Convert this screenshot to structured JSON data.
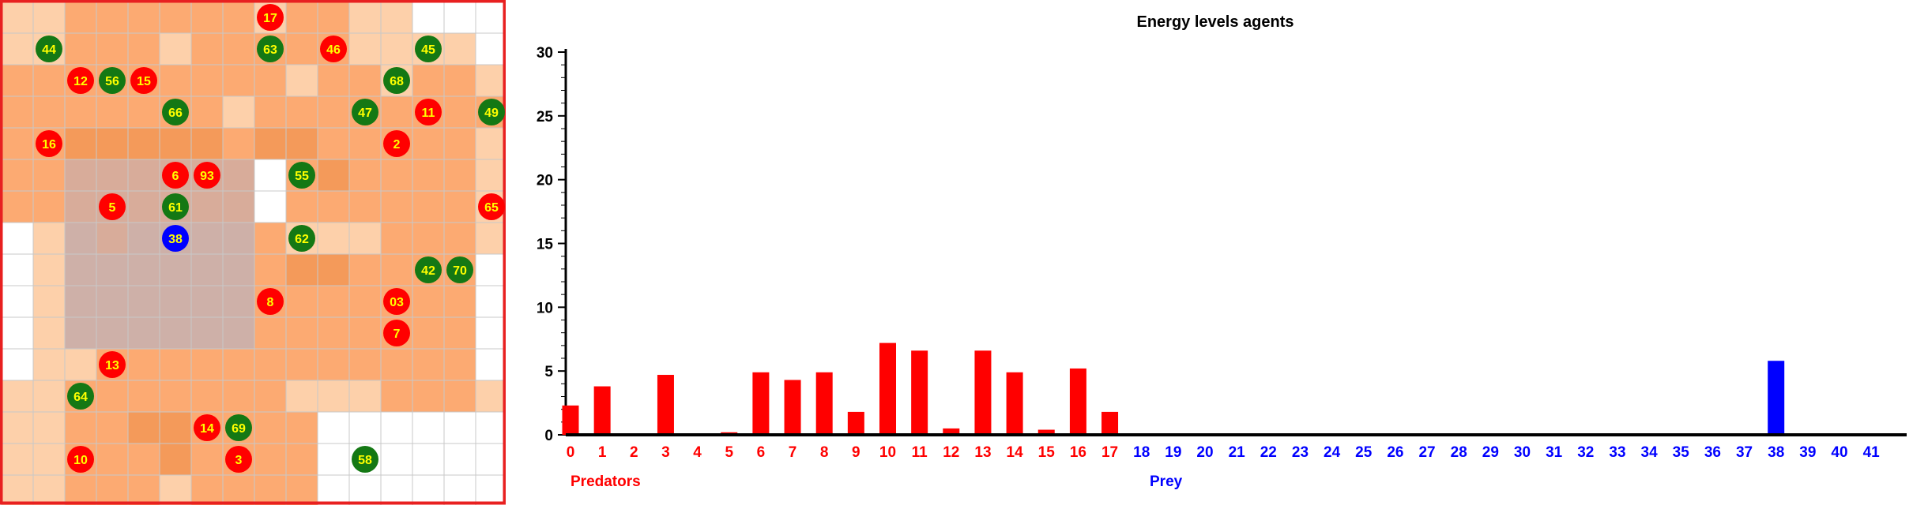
{
  "colors": {
    "predator": "#ff0000",
    "prey": "#147814",
    "highlight": "#0000ff",
    "border": "#e82020",
    "label_text": "#ffff00",
    "grid_line": "#c8c8c8",
    "palette": [
      "#ffffff",
      "#fdd0aa",
      "#fcaa72",
      "#f49a5a",
      "#d8ac9a",
      "#ceb0a8"
    ]
  },
  "grid": {
    "rows": 16,
    "cols": 16,
    "levels": [
      "1122222212211000",
      "1122212222211110",
      "2222222221221221",
      "2222222122222222",
      "2233333233222221",
      "2244444402322221",
      "2244444402222221",
      "0154555521112221",
      "0155555523322220",
      "0155555522222220",
      "0155555522222220",
      "0112222222222220",
      "1122222221112221",
      "1122332222000000",
      "1122232222000000",
      "1122212222000000"
    ],
    "agents": [
      {
        "id": "17",
        "type": "predator",
        "row": 0,
        "col": 8
      },
      {
        "id": "44",
        "type": "prey",
        "row": 1,
        "col": 1
      },
      {
        "id": "63",
        "type": "prey",
        "row": 1,
        "col": 8
      },
      {
        "id": "46",
        "type": "predator",
        "row": 1,
        "col": 10
      },
      {
        "id": "45",
        "type": "prey",
        "row": 1,
        "col": 13
      },
      {
        "id": "12",
        "type": "predator",
        "row": 2,
        "col": 2
      },
      {
        "id": "56",
        "type": "prey",
        "row": 2,
        "col": 3
      },
      {
        "id": "15",
        "type": "predator",
        "row": 2,
        "col": 4
      },
      {
        "id": "68",
        "type": "prey",
        "row": 2,
        "col": 12
      },
      {
        "id": "66",
        "type": "prey",
        "row": 3,
        "col": 5
      },
      {
        "id": "47",
        "type": "prey",
        "row": 3,
        "col": 11
      },
      {
        "id": "11",
        "type": "predator",
        "row": 3,
        "col": 13
      },
      {
        "id": "49",
        "type": "prey",
        "row": 3,
        "col": 15
      },
      {
        "id": "16",
        "type": "predator",
        "row": 4,
        "col": 1
      },
      {
        "id": "2",
        "type": "predator",
        "row": 4,
        "col": 12
      },
      {
        "id": "6",
        "type": "predator",
        "row": 5,
        "col": 5
      },
      {
        "id": "93",
        "type": "predator",
        "row": 5,
        "col": 6
      },
      {
        "id": "55",
        "type": "prey",
        "row": 5,
        "col": 9
      },
      {
        "id": "5",
        "type": "predator",
        "row": 6,
        "col": 3
      },
      {
        "id": "61",
        "type": "prey",
        "row": 6,
        "col": 5
      },
      {
        "id": "65",
        "type": "predator",
        "row": 6,
        "col": 15
      },
      {
        "id": "38",
        "type": "highlight",
        "row": 7,
        "col": 5
      },
      {
        "id": "62",
        "type": "prey",
        "row": 7,
        "col": 9
      },
      {
        "id": "42",
        "type": "prey",
        "row": 8,
        "col": 13
      },
      {
        "id": "70",
        "type": "prey",
        "row": 8,
        "col": 14
      },
      {
        "id": "8",
        "type": "predator",
        "row": 9,
        "col": 8
      },
      {
        "id": "03",
        "type": "predator",
        "row": 9,
        "col": 12
      },
      {
        "id": "7",
        "type": "predator",
        "row": 10,
        "col": 12
      },
      {
        "id": "13",
        "type": "predator",
        "row": 11,
        "col": 3
      },
      {
        "id": "64",
        "type": "prey",
        "row": 12,
        "col": 2
      },
      {
        "id": "14",
        "type": "predator",
        "row": 13,
        "col": 6
      },
      {
        "id": "69",
        "type": "prey",
        "row": 13,
        "col": 7
      },
      {
        "id": "10",
        "type": "predator",
        "row": 14,
        "col": 2
      },
      {
        "id": "3",
        "type": "predator",
        "row": 14,
        "col": 7
      },
      {
        "id": "58",
        "type": "prey",
        "row": 14,
        "col": 11
      }
    ]
  },
  "chart_data": {
    "type": "bar",
    "title": "Energy levels agents",
    "categories": [
      "0",
      "1",
      "2",
      "3",
      "4",
      "5",
      "6",
      "7",
      "8",
      "9",
      "10",
      "11",
      "12",
      "13",
      "14",
      "15",
      "16",
      "17",
      "18",
      "19",
      "20",
      "21",
      "22",
      "23",
      "24",
      "25",
      "26",
      "27",
      "28",
      "29",
      "30",
      "31",
      "32",
      "33",
      "34",
      "35",
      "36",
      "37",
      "38",
      "39",
      "40",
      "41"
    ],
    "values": [
      2.3,
      3.8,
      0.1,
      4.7,
      0,
      0.2,
      4.9,
      4.3,
      4.9,
      1.8,
      7.2,
      6.6,
      0.5,
      6.6,
      4.9,
      0.4,
      5.2,
      1.8,
      0,
      0,
      0,
      0,
      0,
      0,
      0,
      0,
      0,
      0,
      0,
      0,
      0,
      0,
      0,
      0,
      0,
      0,
      0,
      0,
      5.8,
      0,
      0,
      0
    ],
    "predator_last_index": 17,
    "group_labels": {
      "predators": "Predators",
      "prey": "Prey"
    },
    "highlight_index": 38,
    "ylim": [
      0,
      30
    ],
    "yticks": [
      0,
      5,
      10,
      15,
      20,
      25,
      30
    ]
  }
}
